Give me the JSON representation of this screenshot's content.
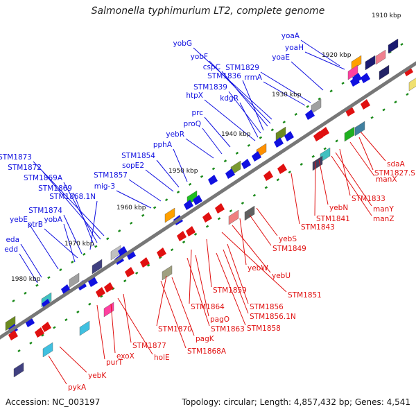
{
  "title": "Salmonella typhimurium LT2, complete genome",
  "accession": "Accession: NC_003197",
  "topology": "Topology: circular; Length: 4,857,432 bp; Genes: 4,541",
  "colors": {
    "forward": "#1010e0",
    "reverse": "#e01010",
    "backbone": "#777777",
    "tick": "#1a8a1a"
  },
  "kbp_ticks": [
    "1910 kbp",
    "1920 kbp",
    "1930 kbp",
    "1940 kbp",
    "1950 kbp",
    "1960 kbp",
    "1970 kbp",
    "1980 kbp"
  ],
  "forward_labels": [
    "yoaA",
    "yoaH",
    "yoaE",
    "STM1829",
    "rrmA",
    "yobG",
    "yobF",
    "cspC",
    "STM1836",
    "STM1839",
    "kdgR",
    "htpX",
    "prc",
    "proQ",
    "yebR",
    "pphA",
    "STM1854",
    "sopE2",
    "STM1857",
    "mig-3",
    "STM1873",
    "STM1872",
    "STM1869A",
    "STM1869",
    "STM1868.1N",
    "STM1874",
    "ptrB",
    "yobA",
    "yebE",
    "eda",
    "edd"
  ],
  "reverse_labels": [
    "sdaA",
    "STM1827.S",
    "manX",
    "STM1833",
    "manY",
    "manZ",
    "yebN",
    "STM1841",
    "STM1843",
    "yebS",
    "STM1849",
    "yebW",
    "yebU",
    "STM1851",
    "STM1859",
    "STM1856",
    "STM1856.1N",
    "STM1858",
    "STM1864",
    "pagO",
    "STM1863",
    "STM1870",
    "pagK",
    "STM1868A",
    "STM1877",
    "holE",
    "exoX",
    "purT",
    "yebK",
    "pykA"
  ]
}
